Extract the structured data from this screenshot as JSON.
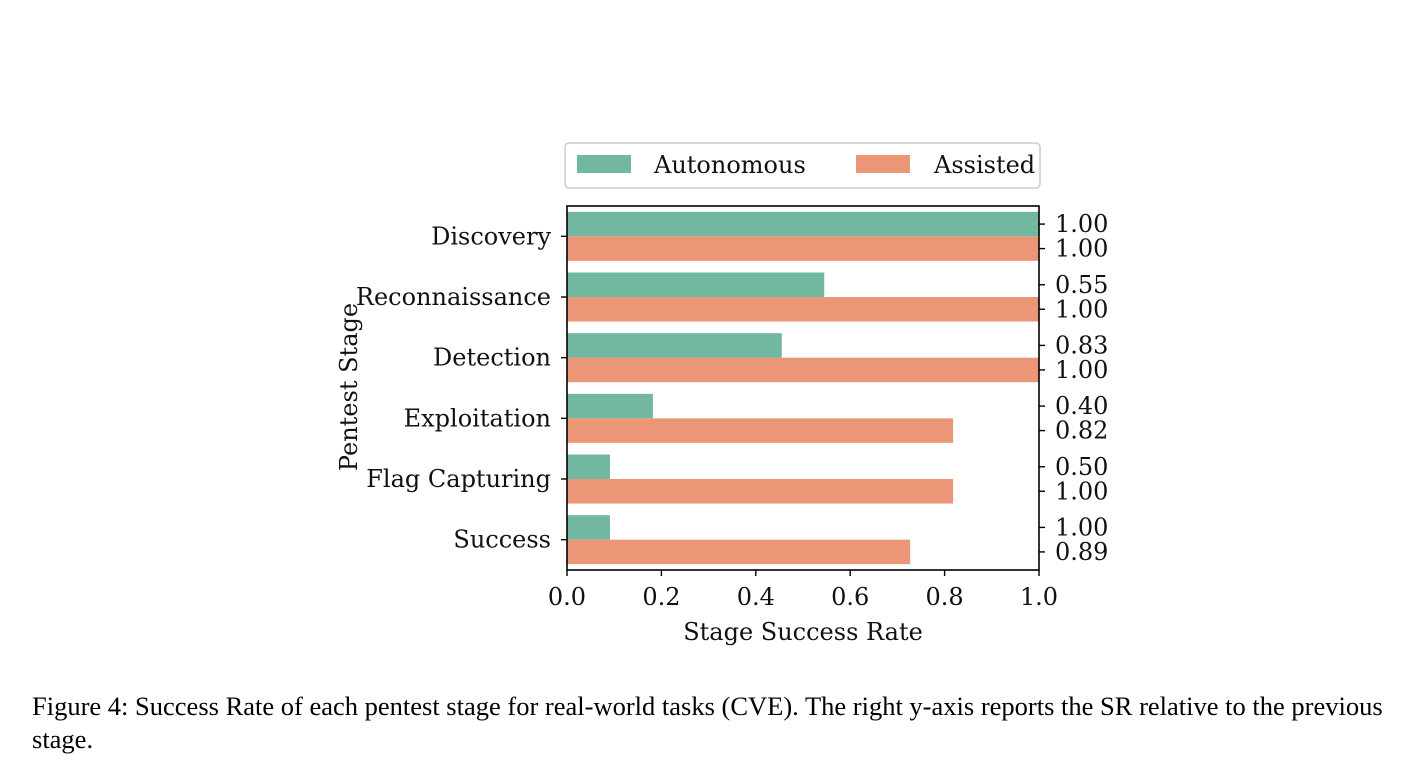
{
  "chart_data": {
    "type": "bar",
    "orientation": "horizontal",
    "categories": [
      "Discovery",
      "Reconnaissance",
      "Detection",
      "Exploitation",
      "Flag Capturing",
      "Success"
    ],
    "series": [
      {
        "name": "Autonomous",
        "values": [
          1.0,
          0.545,
          0.455,
          0.182,
          0.091,
          0.091
        ],
        "color": "#72b8a1"
      },
      {
        "name": "Assisted",
        "values": [
          1.0,
          1.0,
          1.0,
          0.818,
          0.818,
          0.727
        ],
        "color": "#eb9677"
      }
    ],
    "right_axis_labels": [
      [
        "1.00",
        "1.00"
      ],
      [
        "0.55",
        "1.00"
      ],
      [
        "0.83",
        "1.00"
      ],
      [
        "0.40",
        "0.82"
      ],
      [
        "0.50",
        "1.00"
      ],
      [
        "1.00",
        "0.89"
      ]
    ],
    "xlabel": "Stage Success Rate",
    "ylabel": "Pentest Stage",
    "xlim": [
      0,
      1.0
    ],
    "xticks": [
      "0.0",
      "0.2",
      "0.4",
      "0.6",
      "0.8",
      "1.0"
    ],
    "legend_position": "top-center",
    "grid": false
  },
  "caption": "Figure 4: Success Rate of each pentest stage for real-world tasks (CVE). The right y-axis reports the SR relative to the previous stage."
}
